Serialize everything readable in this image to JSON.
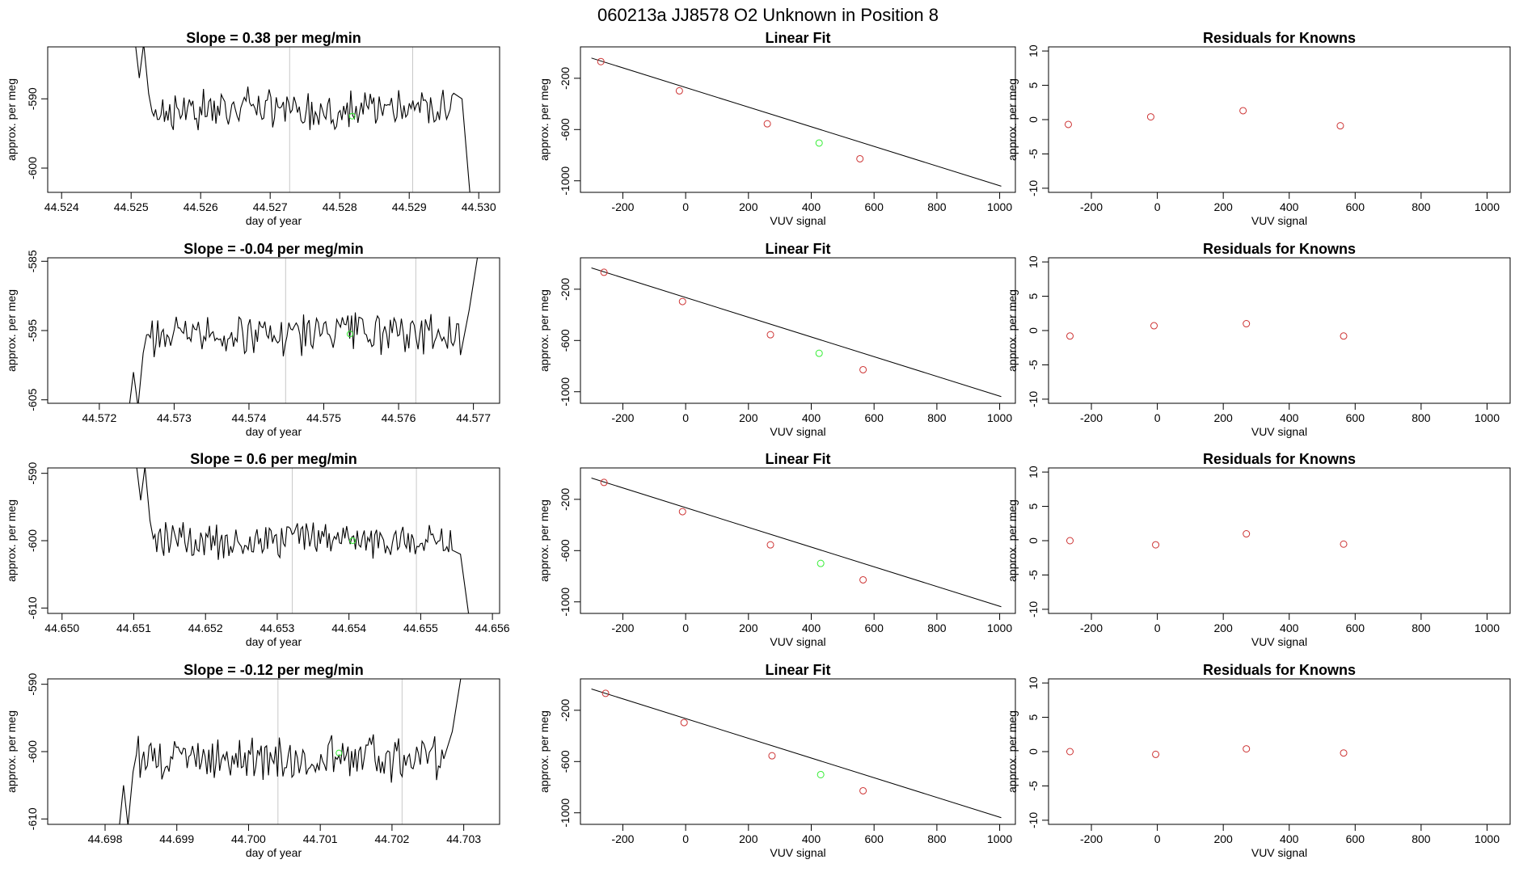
{
  "header": {
    "title": "060213a     JJ8578    O2 Unknown in Position  8"
  },
  "colors": {
    "trace": "#000000",
    "grid_line": "#c8c8c8",
    "known_point": "#cd3333",
    "unknown_point": "#33ee33",
    "fit_line": "#000000"
  },
  "chart_data": [
    {
      "type": "line",
      "panel": "timeseries",
      "row": 1,
      "title": "Slope =  0.38  per meg/min",
      "xlabel": "day of year",
      "ylabel": "approx. per meg",
      "xlim": [
        44.5238,
        44.5303
      ],
      "ylim": [
        -603.5,
        -582.5
      ],
      "xticks": [
        44.524,
        44.525,
        44.526,
        44.527,
        44.528,
        44.529,
        44.53
      ],
      "xtick_labels": [
        "44.524",
        "44.525",
        "44.526",
        "44.527",
        "44.528",
        "44.529",
        "44.530"
      ],
      "yticks": [
        -590,
        -600
      ],
      "ytick_labels": [
        "-590",
        "-600"
      ],
      "vlines": [
        44.52728,
        44.52905
      ],
      "trace_start": 44.52506,
      "trace_end": 44.52988,
      "trace_mean": -591.5,
      "trace_amp": 2.8,
      "lead_in": [
        -582.0,
        -587.0
      ],
      "tail": [
        -590.0,
        -604.5
      ],
      "unknown_point": {
        "x": 44.52818,
        "y": -592.5
      }
    },
    {
      "type": "line",
      "panel": "timeseries",
      "row": 2,
      "title": "Slope =  -0.04  per meg/min",
      "xlabel": "day of year",
      "ylabel": "approx. per meg",
      "xlim": [
        44.57131,
        44.57735
      ],
      "ylim": [
        -605.5,
        -584.5
      ],
      "xticks": [
        44.572,
        44.573,
        44.574,
        44.575,
        44.576,
        44.577
      ],
      "xtick_labels": [
        "44.572",
        "44.573",
        "44.574",
        "44.575",
        "44.576",
        "44.577"
      ],
      "yticks": [
        -585,
        -595,
        -605
      ],
      "ytick_labels": [
        "-585",
        "-595",
        "-605"
      ],
      "vlines": [
        44.57449,
        44.57623
      ],
      "trace_start": 44.5724,
      "trace_end": 44.57706,
      "trace_mean": -595.5,
      "trace_amp": 3.0,
      "lead_in": [
        -606.0,
        -601.0
      ],
      "tail": [
        -592.0,
        -584.0
      ],
      "unknown_point": {
        "x": 44.57535,
        "y": -595.5
      }
    },
    {
      "type": "line",
      "panel": "timeseries",
      "row": 3,
      "title": "Slope =  0.6  per meg/min",
      "xlabel": "day of year",
      "ylabel": "approx. per meg",
      "xlim": [
        44.6498,
        44.6561
      ],
      "ylim": [
        -610.8,
        -589.2
      ],
      "xticks": [
        44.65,
        44.651,
        44.652,
        44.653,
        44.654,
        44.655,
        44.656
      ],
      "xtick_labels": [
        "44.650",
        "44.651",
        "44.652",
        "44.653",
        "44.654",
        "44.655",
        "44.656"
      ],
      "yticks": [
        -590,
        -600,
        -610
      ],
      "ytick_labels": [
        "-590",
        "-600",
        "-610"
      ],
      "vlines": [
        44.65321,
        44.65494
      ],
      "trace_start": 44.65104,
      "trace_end": 44.65567,
      "trace_mean": -600.0,
      "trace_amp": 2.6,
      "lead_in": [
        -589.0,
        -594.0
      ],
      "tail": [
        -602.0,
        -611.0
      ],
      "unknown_point": {
        "x": 44.65405,
        "y": -600.0
      }
    },
    {
      "type": "line",
      "panel": "timeseries",
      "row": 4,
      "title": "Slope =  -0.12  per meg/min",
      "xlabel": "day of year",
      "ylabel": "approx. per meg",
      "xlim": [
        44.6972,
        44.7035
      ],
      "ylim": [
        -610.8,
        -589.2
      ],
      "xticks": [
        44.698,
        44.699,
        44.7,
        44.701,
        44.702,
        44.703
      ],
      "xtick_labels": [
        "44.698",
        "44.699",
        "44.700",
        "44.701",
        "44.702",
        "44.703"
      ],
      "yticks": [
        -590,
        -600,
        -610
      ],
      "ytick_labels": [
        "-590",
        "-600",
        "-610"
      ],
      "vlines": [
        44.70041,
        44.70214
      ],
      "trace_start": 44.6982,
      "trace_end": 44.70296,
      "trace_mean": -601.0,
      "trace_amp": 3.2,
      "lead_in": [
        -611.0,
        -605.0
      ],
      "tail": [
        -597.0,
        -589.0
      ],
      "unknown_point": {
        "x": 44.70126,
        "y": -600.2
      }
    },
    {
      "type": "scatter",
      "panel": "fit",
      "row": 1,
      "title": "Linear Fit",
      "xlabel": "VUV signal",
      "ylabel": "approx. per meg",
      "xlim": [
        -335,
        1050
      ],
      "ylim": [
        -1090,
        45
      ],
      "xticks": [
        -200,
        0,
        200,
        400,
        600,
        800,
        1000
      ],
      "xtick_labels": [
        "-200",
        "0",
        "200",
        "400",
        "600",
        "800",
        "1000"
      ],
      "yticks": [
        -200,
        -600,
        -1000
      ],
      "ytick_labels": [
        "-200",
        "-600",
        "-1000"
      ],
      "known_points": [
        {
          "x": -270,
          "y": -70
        },
        {
          "x": -20,
          "y": -298
        },
        {
          "x": 260,
          "y": -555
        },
        {
          "x": 555,
          "y": -828
        }
      ],
      "unknown_point": {
        "x": 425,
        "y": -705
      },
      "fit_line": {
        "x": [
          -300,
          1005
        ],
        "y": [
          -42,
          -1042
        ]
      }
    },
    {
      "type": "scatter",
      "panel": "fit",
      "row": 2,
      "title": "Linear Fit",
      "xlabel": "VUV signal",
      "ylabel": "approx. per meg",
      "xlim": [
        -335,
        1050
      ],
      "ylim": [
        -1090,
        45
      ],
      "xticks": [
        -200,
        0,
        200,
        400,
        600,
        800,
        1000
      ],
      "xtick_labels": [
        "-200",
        "0",
        "200",
        "400",
        "600",
        "800",
        "1000"
      ],
      "yticks": [
        -200,
        -600,
        -1000
      ],
      "ytick_labels": [
        "-200",
        "-600",
        "-1000"
      ],
      "known_points": [
        {
          "x": -260,
          "y": -68
        },
        {
          "x": -10,
          "y": -296
        },
        {
          "x": 270,
          "y": -555
        },
        {
          "x": 565,
          "y": -828
        }
      ],
      "unknown_point": {
        "x": 425,
        "y": -700
      },
      "fit_line": {
        "x": [
          -300,
          1005
        ],
        "y": [
          -34,
          -1038
        ]
      }
    },
    {
      "type": "scatter",
      "panel": "fit",
      "row": 3,
      "title": "Linear Fit",
      "xlabel": "VUV signal",
      "ylabel": "approx. per meg",
      "xlim": [
        -335,
        1050
      ],
      "ylim": [
        -1090,
        45
      ],
      "xticks": [
        -200,
        0,
        200,
        400,
        600,
        800,
        1000
      ],
      "xtick_labels": [
        "-200",
        "0",
        "200",
        "400",
        "600",
        "800",
        "1000"
      ],
      "yticks": [
        -200,
        -600,
        -1000
      ],
      "ytick_labels": [
        "-200",
        "-600",
        "-1000"
      ],
      "known_points": [
        {
          "x": -260,
          "y": -68
        },
        {
          "x": -10,
          "y": -296
        },
        {
          "x": 270,
          "y": -555
        },
        {
          "x": 565,
          "y": -828
        }
      ],
      "unknown_point": {
        "x": 430,
        "y": -700
      },
      "fit_line": {
        "x": [
          -300,
          1005
        ],
        "y": [
          -34,
          -1038
        ]
      }
    },
    {
      "type": "scatter",
      "panel": "fit",
      "row": 4,
      "title": "Linear Fit",
      "xlabel": "VUV signal",
      "ylabel": "approx. per meg",
      "xlim": [
        -335,
        1050
      ],
      "ylim": [
        -1090,
        45
      ],
      "xticks": [
        -200,
        0,
        200,
        400,
        600,
        800,
        1000
      ],
      "xtick_labels": [
        "-200",
        "0",
        "200",
        "400",
        "600",
        "800",
        "1000"
      ],
      "yticks": [
        -200,
        -600,
        -1000
      ],
      "ytick_labels": [
        "-200",
        "-600",
        "-1000"
      ],
      "known_points": [
        {
          "x": -255,
          "y": -68
        },
        {
          "x": -5,
          "y": -296
        },
        {
          "x": 275,
          "y": -555
        },
        {
          "x": 565,
          "y": -828
        }
      ],
      "unknown_point": {
        "x": 430,
        "y": -702
      },
      "fit_line": {
        "x": [
          -300,
          1005
        ],
        "y": [
          -34,
          -1038
        ]
      }
    },
    {
      "type": "scatter",
      "panel": "residuals",
      "row": 1,
      "title": "Residuals for Knowns",
      "xlabel": "VUV signal",
      "ylabel": "approx. per meg",
      "xlim": [
        -330,
        1070
      ],
      "ylim": [
        -10.6,
        10.6
      ],
      "xticks": [
        -200,
        0,
        200,
        400,
        600,
        800,
        1000
      ],
      "xtick_labels": [
        "-200",
        "0",
        "200",
        "400",
        "600",
        "800",
        "1000"
      ],
      "yticks": [
        10,
        5,
        0,
        -5,
        -10
      ],
      "ytick_labels": [
        "10",
        "5",
        "0",
        "-5",
        "-10"
      ],
      "points": [
        {
          "x": -270,
          "y": -0.7
        },
        {
          "x": -20,
          "y": 0.4
        },
        {
          "x": 260,
          "y": 1.3
        },
        {
          "x": 555,
          "y": -0.9
        }
      ]
    },
    {
      "type": "scatter",
      "panel": "residuals",
      "row": 2,
      "title": "Residuals for Knowns",
      "xlabel": "VUV signal",
      "ylabel": "approx. per meg",
      "xlim": [
        -330,
        1070
      ],
      "ylim": [
        -10.6,
        10.6
      ],
      "xticks": [
        -200,
        0,
        200,
        400,
        600,
        800,
        1000
      ],
      "xtick_labels": [
        "-200",
        "0",
        "200",
        "400",
        "600",
        "800",
        "1000"
      ],
      "yticks": [
        10,
        5,
        0,
        -5,
        -10
      ],
      "ytick_labels": [
        "10",
        "5",
        "0",
        "-5",
        "-10"
      ],
      "points": [
        {
          "x": -265,
          "y": -0.8
        },
        {
          "x": -10,
          "y": 0.7
        },
        {
          "x": 270,
          "y": 1.0
        },
        {
          "x": 565,
          "y": -0.8
        }
      ]
    },
    {
      "type": "scatter",
      "panel": "residuals",
      "row": 3,
      "title": "Residuals for Knowns",
      "xlabel": "VUV signal",
      "ylabel": "approx. per meg",
      "xlim": [
        -330,
        1070
      ],
      "ylim": [
        -10.6,
        10.6
      ],
      "xticks": [
        -200,
        0,
        200,
        400,
        600,
        800,
        1000
      ],
      "xtick_labels": [
        "-200",
        "0",
        "200",
        "400",
        "600",
        "800",
        "1000"
      ],
      "yticks": [
        10,
        5,
        0,
        -5,
        -10
      ],
      "ytick_labels": [
        "10",
        "5",
        "0",
        "-5",
        "-10"
      ],
      "points": [
        {
          "x": -265,
          "y": 0.0
        },
        {
          "x": -5,
          "y": -0.6
        },
        {
          "x": 270,
          "y": 1.0
        },
        {
          "x": 565,
          "y": -0.5
        }
      ]
    },
    {
      "type": "scatter",
      "panel": "residuals",
      "row": 4,
      "title": "Residuals for Knowns",
      "xlabel": "VUV signal",
      "ylabel": "approx. per meg",
      "xlim": [
        -330,
        1070
      ],
      "ylim": [
        -10.6,
        10.6
      ],
      "xticks": [
        -200,
        0,
        200,
        400,
        600,
        800,
        1000
      ],
      "xtick_labels": [
        "-200",
        "0",
        "200",
        "400",
        "600",
        "800",
        "1000"
      ],
      "yticks": [
        10,
        5,
        0,
        -5,
        -10
      ],
      "ytick_labels": [
        "10",
        "5",
        "0",
        "-5",
        "-10"
      ],
      "points": [
        {
          "x": -265,
          "y": 0.0
        },
        {
          "x": -5,
          "y": -0.4
        },
        {
          "x": 270,
          "y": 0.4
        },
        {
          "x": 565,
          "y": -0.2
        }
      ]
    }
  ]
}
